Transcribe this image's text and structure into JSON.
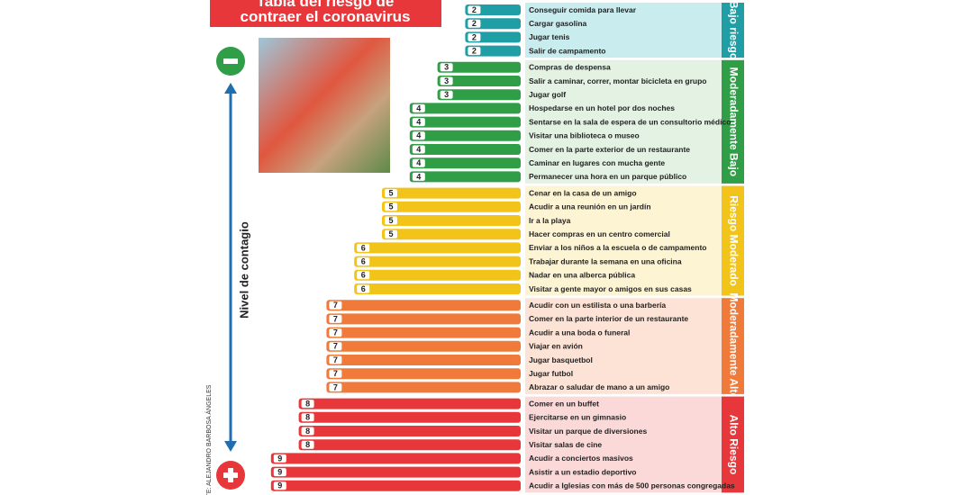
{
  "chart_data": {
    "type": "bar",
    "orientation": "horizontal",
    "title": "Tabla del riesgo de contraer el coronavirus",
    "axis_label": "Nivel de contagio",
    "source": "TE: ALEJANDRO BARBOSA ÁNGELES",
    "xlim": [
      0,
      10
    ],
    "groups": [
      {
        "name": "Bajo riesgo",
        "color": "#1f9ea6",
        "tint": "#c9ecef",
        "categories": [
          "Conseguir comida para llevar",
          "Cargar gasolina",
          "Jugar tenis",
          "Salir de campamento"
        ],
        "values": [
          2,
          2,
          2,
          2
        ]
      },
      {
        "name": "Moderadamente Bajo",
        "color": "#2f9e46",
        "tint": "#e3f2e3",
        "categories": [
          "Compras de despensa",
          "Salir a caminar, correr, montar bicicleta en grupo",
          "Jugar golf",
          "Hospedarse en un hotel por dos noches",
          "Sentarse en la sala de espera de un consultorio médico",
          "Visitar una biblioteca o museo",
          "Comer en la parte exterior de un restaurante",
          "Caminar en lugares con mucha gente",
          "Permanecer una hora en un parque público"
        ],
        "values": [
          3,
          3,
          3,
          4,
          4,
          4,
          4,
          4,
          4
        ]
      },
      {
        "name": "Riesgo Moderado",
        "color": "#f2c318",
        "tint": "#fdf4d4",
        "categories": [
          "Cenar en la casa de un amigo",
          "Acudir a una reunión en un jardín",
          "Ir a la playa",
          "Hacer compras en un centro comercial",
          "Enviar a los niños a la escuela o de campamento",
          "Trabajar durante la semana en una oficina",
          "Nadar en una alberca pública",
          "Visitar a gente mayor o amigos en sus casas"
        ],
        "values": [
          5,
          5,
          5,
          5,
          6,
          6,
          6,
          6
        ]
      },
      {
        "name": "Moderadamente Alto",
        "color": "#f07a3a",
        "tint": "#fde3d6",
        "categories": [
          "Acudir con un estilista o una barbería",
          "Comer en la parte interior de un restaurante",
          "Acudir a una boda o funeral",
          "Viajar en avión",
          "Jugar basquetbol",
          "Jugar futbol",
          "Abrazar o saludar de mano a un amigo"
        ],
        "values": [
          7,
          7,
          7,
          7,
          7,
          7,
          7
        ]
      },
      {
        "name": "Alto Riesgo",
        "color": "#e8373a",
        "tint": "#fbd9d9",
        "categories": [
          "Comer en un buffet",
          "Ejercitarse en un gimnasio",
          "Visitar un parque de diversiones",
          "Visitar salas de cine",
          "Acudir a conciertos masivos",
          "Asistir a un estadio deportivo",
          "Acudir a Iglesias con más de 500 personas congregadas"
        ],
        "values": [
          8,
          8,
          8,
          8,
          9,
          9,
          9
        ]
      }
    ]
  }
}
